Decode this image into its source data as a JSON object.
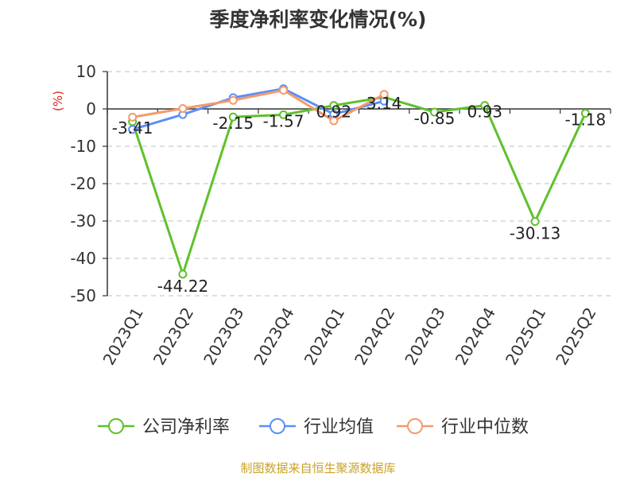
{
  "chart_data": {
    "type": "line",
    "title": "季度净利率变化情况(%)",
    "ylabel": "(%)",
    "xlabel": "",
    "categories": [
      "2023Q1",
      "2023Q2",
      "2023Q3",
      "2023Q4",
      "2024Q1",
      "2024Q2",
      "2024Q3",
      "2024Q4",
      "2025Q1",
      "2025Q2"
    ],
    "ylim": [
      -50,
      10
    ],
    "yticks": [
      10,
      0,
      -10,
      -20,
      -30,
      -40,
      -50
    ],
    "grid": true,
    "legend_position": "bottom",
    "series": [
      {
        "name": "公司净利率",
        "color": "#5ec12b",
        "values": [
          -3.41,
          -44.22,
          -2.15,
          -1.57,
          0.92,
          3.14,
          -0.85,
          0.93,
          -30.13,
          -1.18
        ],
        "data_labels": [
          "-3.41",
          "-44.22",
          "-2.15",
          "-1.57",
          "0.92",
          "3.14",
          "-0.85",
          "0.93",
          "-30.13",
          "-1.18"
        ]
      },
      {
        "name": "行业均值",
        "color": "#5b8ff9",
        "values": [
          -5.5,
          -1.5,
          3.0,
          5.4,
          -1.4,
          2.1,
          null,
          null,
          null,
          null
        ]
      },
      {
        "name": "行业中位数",
        "color": "#f59a6a",
        "values": [
          -2.2,
          0.1,
          2.3,
          5.0,
          -3.2,
          3.9,
          null,
          null,
          null,
          null
        ]
      }
    ],
    "source": "制图数据来自恒生聚源数据库"
  }
}
